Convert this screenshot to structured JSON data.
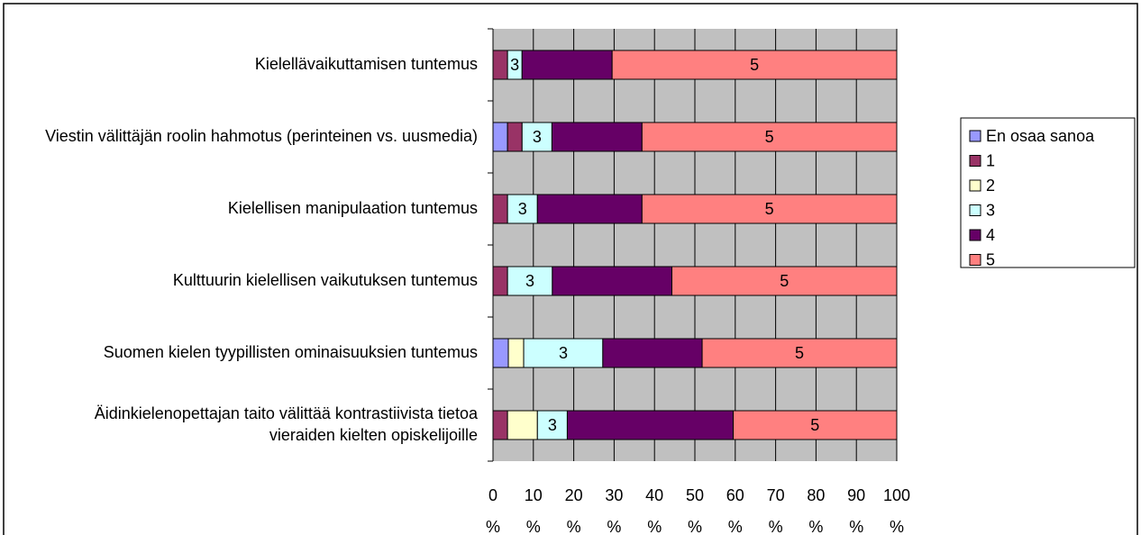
{
  "chart_data": {
    "type": "bar",
    "orientation": "horizontal",
    "stacked": true,
    "categories": [
      "Kielellävaikuttamisen tuntemus",
      "Viestin välittäjän roolin hahmotus (perinteinen vs. uusmedia)",
      "Kielellisen manipulaation tuntemus",
      "Kulttuurin kielellisen vaikutuksen tuntemus",
      "Suomen kielen tyypillisten ominaisuuksien tuntemus",
      "Äidinkielenopettajan taito välittää kontrastiivista tietoa vieraiden kielten opiskelijoille"
    ],
    "series": [
      {
        "name": "En osaa sanoa",
        "color": "#9999ff",
        "show_label": false,
        "values": [
          0,
          3.6,
          0,
          0,
          3.8,
          0
        ]
      },
      {
        "name": "1",
        "color": "#993366",
        "show_label": false,
        "values": [
          3.6,
          3.6,
          3.6,
          3.6,
          0,
          3.6
        ]
      },
      {
        "name": "2",
        "color": "#ffffcc",
        "show_label": false,
        "values": [
          0,
          0,
          0,
          0,
          3.8,
          7.4
        ]
      },
      {
        "name": "3",
        "color": "#ccffff",
        "show_label": true,
        "values": [
          3.6,
          7.4,
          7.4,
          11.1,
          19.6,
          7.4
        ]
      },
      {
        "name": "4",
        "color": "#660066",
        "show_label": false,
        "values": [
          22.3,
          22.3,
          25.9,
          29.6,
          24.6,
          41.1
        ]
      },
      {
        "name": "5",
        "color": "#ff8080",
        "show_label": true,
        "values": [
          70.5,
          63.1,
          63.1,
          55.7,
          48.2,
          40.5
        ]
      }
    ],
    "xlim": [
      0,
      100
    ],
    "xticks": [
      {
        "value": 0,
        "label": "0 %"
      },
      {
        "value": 10,
        "label": "10 %"
      },
      {
        "value": 20,
        "label": "20 %"
      },
      {
        "value": 30,
        "label": "30 %"
      },
      {
        "value": 40,
        "label": "40 %"
      },
      {
        "value": 50,
        "label": "50 %"
      },
      {
        "value": 60,
        "label": "60 %"
      },
      {
        "value": 70,
        "label": "70 %"
      },
      {
        "value": 80,
        "label": "80 %"
      },
      {
        "value": 90,
        "label": "90 %"
      },
      {
        "value": 100,
        "label": "100 %"
      }
    ],
    "grid": true,
    "legend": "right"
  }
}
